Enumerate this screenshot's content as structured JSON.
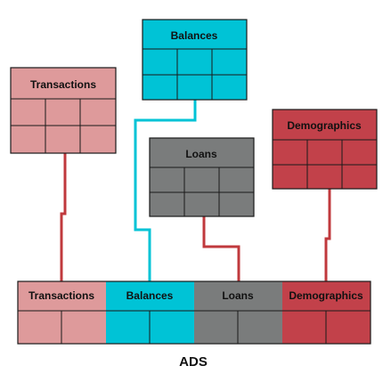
{
  "colors": {
    "transactions": "#de9a9b",
    "balances": "#00c3d6",
    "loans": "#7a7c7c",
    "demographics": "#c2414a",
    "connector_red": "#c0393d",
    "connector_cyan": "#00c3d6",
    "grid_line": "#1a1a1a"
  },
  "source_tables": {
    "transactions": {
      "title": "Transactions"
    },
    "balances": {
      "title": "Balances"
    },
    "loans": {
      "title": "Loans"
    },
    "demographics": {
      "title": "Demographics"
    }
  },
  "ads": {
    "label": "ADS",
    "columns": [
      {
        "title": "Transactions"
      },
      {
        "title": "Balances"
      },
      {
        "title": "Loans"
      },
      {
        "title": "Demographics"
      }
    ]
  }
}
